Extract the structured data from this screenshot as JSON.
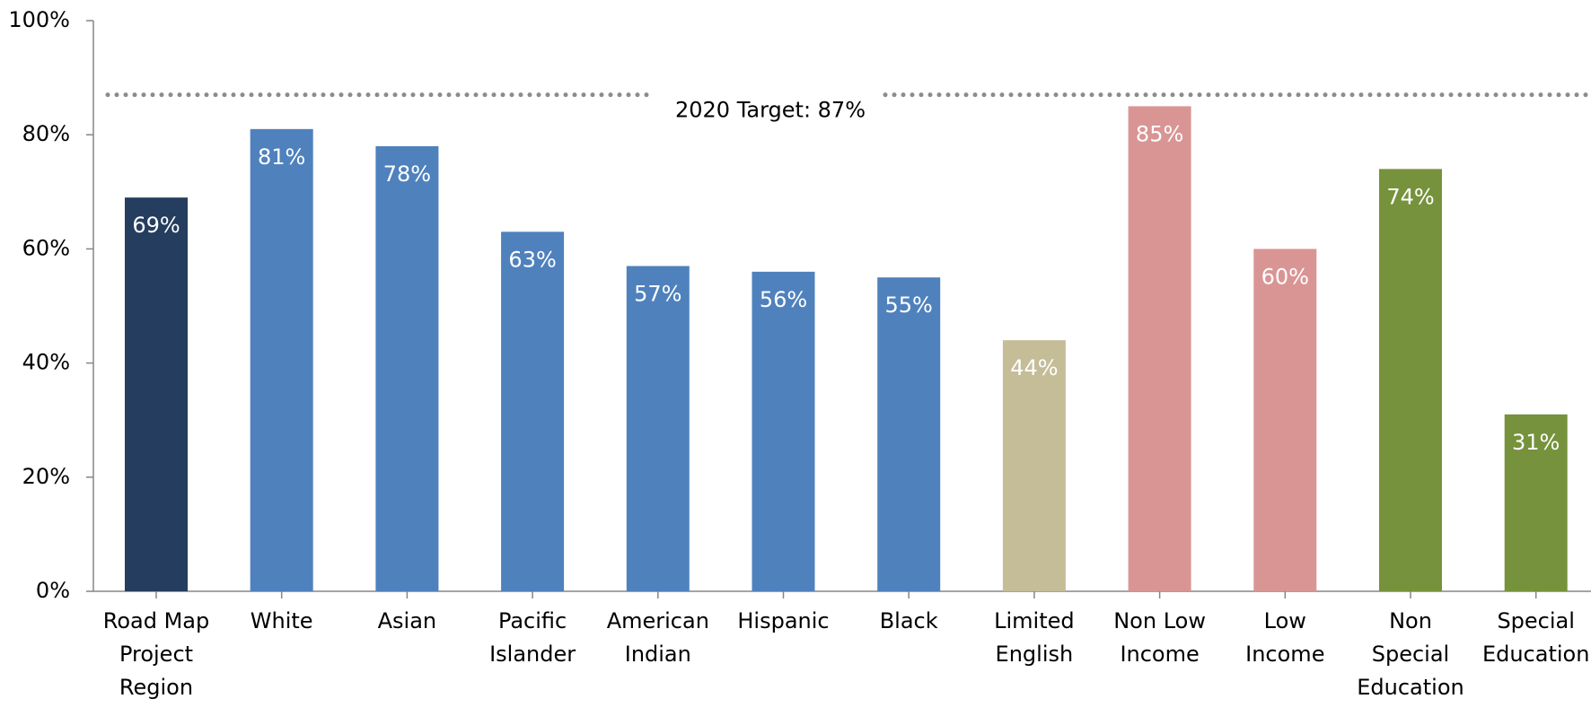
{
  "chart_data": {
    "type": "bar",
    "categories": [
      "Road Map Project Region",
      "White",
      "Asian",
      "Pacific Islander",
      "American Indian",
      "Hispanic",
      "Black",
      "Limited English",
      "Non Low Income",
      "Low Income",
      "Non Special Education",
      "Special Education"
    ],
    "values": [
      69,
      81,
      78,
      63,
      57,
      56,
      55,
      44,
      85,
      60,
      74,
      31
    ],
    "value_labels": [
      "69%",
      "81%",
      "78%",
      "63%",
      "57%",
      "56%",
      "55%",
      "44%",
      "85%",
      "60%",
      "74%",
      "31%"
    ],
    "colors": [
      "#253d5e",
      "#4f81bd",
      "#4f81bd",
      "#4f81bd",
      "#4f81bd",
      "#4f81bd",
      "#4f81bd",
      "#c4bd97",
      "#d99594",
      "#d99594",
      "#76923c",
      "#76923c"
    ],
    "ylim": [
      0,
      100
    ],
    "yticks": [
      {
        "value": 0,
        "label": "0%"
      },
      {
        "value": 20,
        "label": "20%"
      },
      {
        "value": 40,
        "label": "40%"
      },
      {
        "value": 60,
        "label": "60%"
      },
      {
        "value": 80,
        "label": "80%"
      },
      {
        "value": 100,
        "label": "100%"
      }
    ],
    "target": {
      "value": 87,
      "label": "2020 Target: 87%",
      "color": "#8c8c8c"
    }
  }
}
